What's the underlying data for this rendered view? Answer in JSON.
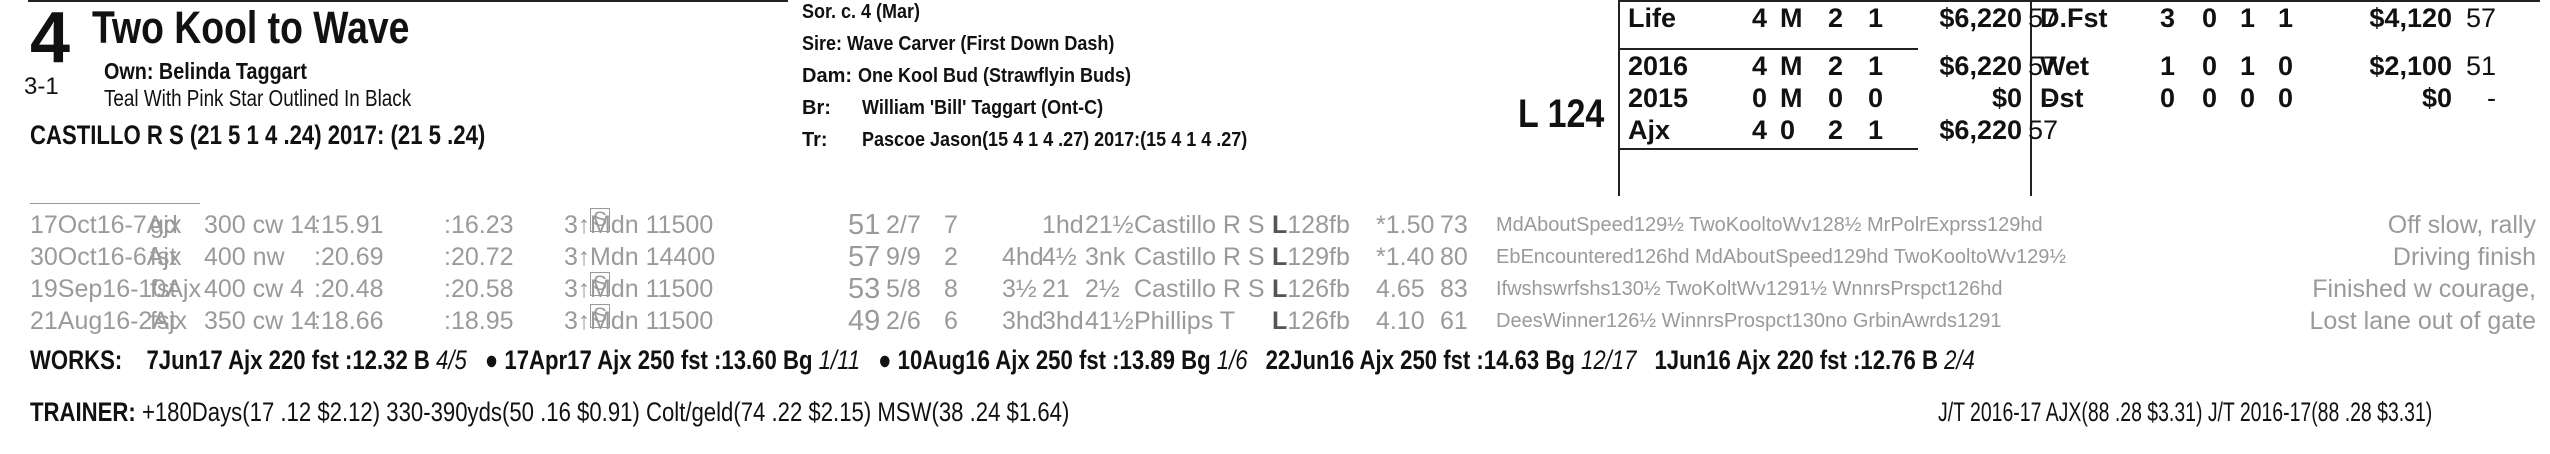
{
  "header": {
    "program_number": "4",
    "odds": "3-1",
    "horse_name": "Two Kool to Wave",
    "owner": "Own: Belinda Taggart",
    "silks": "Teal With Pink Star Outlined In Black",
    "jockey_line": "CASTILLO R S (21 5 1 4 .24) 2017: (21 5 .24)",
    "sex_age": "Sor. c. 4 (Mar)",
    "sire": "Sire: Wave Carver (First Down Dash)",
    "dam_label": "Dam:",
    "dam": "One Kool Bud (Strawflyin Buds)",
    "breeder_label": "Br:",
    "breeder": "William 'Bill' Taggart (Ont-C)",
    "trainer_label": "Tr:",
    "trainer": "Pascoe Jason(15 4 1 4 .27)  2017:(15 4 1 4 .27)",
    "weight": "L 124"
  },
  "record_left": [
    {
      "label": "Life",
      "st": "4",
      "w": "M",
      "p": "2",
      "s": "1",
      "earn": "$6,220",
      "sr": "57"
    },
    {
      "label": "2016",
      "st": "4",
      "w": "M",
      "p": "2",
      "s": "1",
      "earn": "$6,220",
      "sr": "57"
    },
    {
      "label": "2015",
      "st": "0",
      "w": "M",
      "p": "0",
      "s": "0",
      "earn": "$0",
      "sr": "-"
    },
    {
      "label": "Ajx",
      "st": "4",
      "w": "0",
      "p": "2",
      "s": "1",
      "earn": "$6,220",
      "sr": "57"
    }
  ],
  "record_right": [
    {
      "label": "D.Fst",
      "st": "3",
      "w": "0",
      "p": "1",
      "s": "1",
      "earn": "$4,120",
      "sr": "57"
    },
    {
      "label": "Wet",
      "st": "1",
      "w": "0",
      "p": "1",
      "s": "0",
      "earn": "$2,100",
      "sr": "51"
    },
    {
      "label": "Dst",
      "st": "0",
      "w": "0",
      "p": "0",
      "s": "0",
      "earn": "$0",
      "sr": "-"
    }
  ],
  "past_performances": [
    {
      "date": "17Oct16-7Ajx",
      "cond": "gd",
      "dist": "300 cw 14",
      "t1": ":15.91",
      "t2": ":16.23",
      "age": "3↑",
      "race": "Mdn 11500",
      "spd": "51",
      "pp": "2/7",
      "start": "7",
      "c1": "",
      "c2": "1hd",
      "fin": "21½",
      "jockey": "Castillo R S",
      "wt": "L128fb",
      "odds": "*1.50",
      "sr": "73",
      "comp": "MdAboutSpeed129½ TwoKooltoWv128½ MrPolrExprss129hd",
      "comment": "Off slow, rally"
    },
    {
      "date": "30Oct16-6Ajx",
      "cond": "fst",
      "dist": "400 nw",
      "t1": ":20.69",
      "t2": ":20.72",
      "age": "3↑",
      "race": "Mdn 14400",
      "spd": "57",
      "pp": "9/9",
      "start": "2",
      "c1": "4hd",
      "c2": "4½",
      "fin": "3nk",
      "jockey": "Castillo R S",
      "wt": "L129fb",
      "odds": "*1.40",
      "sr": "80",
      "comp": "EbEncountered126hd MdAboutSpeed129hd TwoKooltoWv129½",
      "comment": "Driving finish"
    },
    {
      "date": "19Sep16-10Ajx",
      "cond": "fst",
      "dist": "400 cw 4",
      "t1": ":20.48",
      "t2": ":20.58",
      "age": "3↑",
      "race": "Mdn 11500",
      "spd": "53",
      "pp": "5/8",
      "start": "8",
      "c1": "3½",
      "c2": "21",
      "fin": "2½",
      "jockey": "Castillo R S",
      "wt": "L126fb",
      "odds": "4.65",
      "sr": "83",
      "comp": "Ifwshswrfshs130½ TwoKoltWv1291½ WnnrsPrspct126hd",
      "comment": "Finished w courage,"
    },
    {
      "date": "21Aug16-2Ajx",
      "cond": "fst",
      "dist": "350 cw 14",
      "t1": ":18.66",
      "t2": ":18.95",
      "age": "3↑",
      "race": "Mdn 11500",
      "spd": "49",
      "pp": "2/6",
      "start": "6",
      "c1": "3hd",
      "c2": "3hd",
      "fin": "41½",
      "jockey": "Phillips T",
      "wt": "L126fb",
      "odds": "4.10",
      "sr": "61",
      "comp": "DeesWinner126½ WinnrsProspct130no GrbinAwrds1291",
      "comment": "Lost lane out of gate"
    }
  ],
  "works_label": "WORKS:",
  "works": [
    {
      "bullet": "",
      "date": "7Jun17",
      "track": "Ajx",
      "dist": "220 fst",
      "time": ":12.32 B",
      "rank": "4/5"
    },
    {
      "bullet": "●",
      "date": "17Apr17",
      "track": "Ajx",
      "dist": "250 fst",
      "time": ":13.60 Bg",
      "rank": "1/11"
    },
    {
      "bullet": "●",
      "date": "10Aug16",
      "track": "Ajx",
      "dist": "250 fst",
      "time": ":13.89 Bg",
      "rank": "1/6"
    },
    {
      "bullet": "",
      "date": "22Jun16",
      "track": "Ajx",
      "dist": "250 fst",
      "time": ":14.63 Bg",
      "rank": "12/17"
    },
    {
      "bullet": "",
      "date": "1Jun16",
      "track": "Ajx",
      "dist": "220 fst",
      "time": ":12.76 B",
      "rank": "2/4"
    }
  ],
  "trainer_label": "TRAINER:",
  "trainer_stats": "+180Days(17 .12 $2.12)  330-390yds(50 .16 $0.91)  Colt/geld(74 .22 $2.15)  MSW(38 .24 $1.64)",
  "jt_stats": "J/T 2016-17 AJX(88 .28 $3.31)  J/T 2016-17(88 .28 $3.31)"
}
